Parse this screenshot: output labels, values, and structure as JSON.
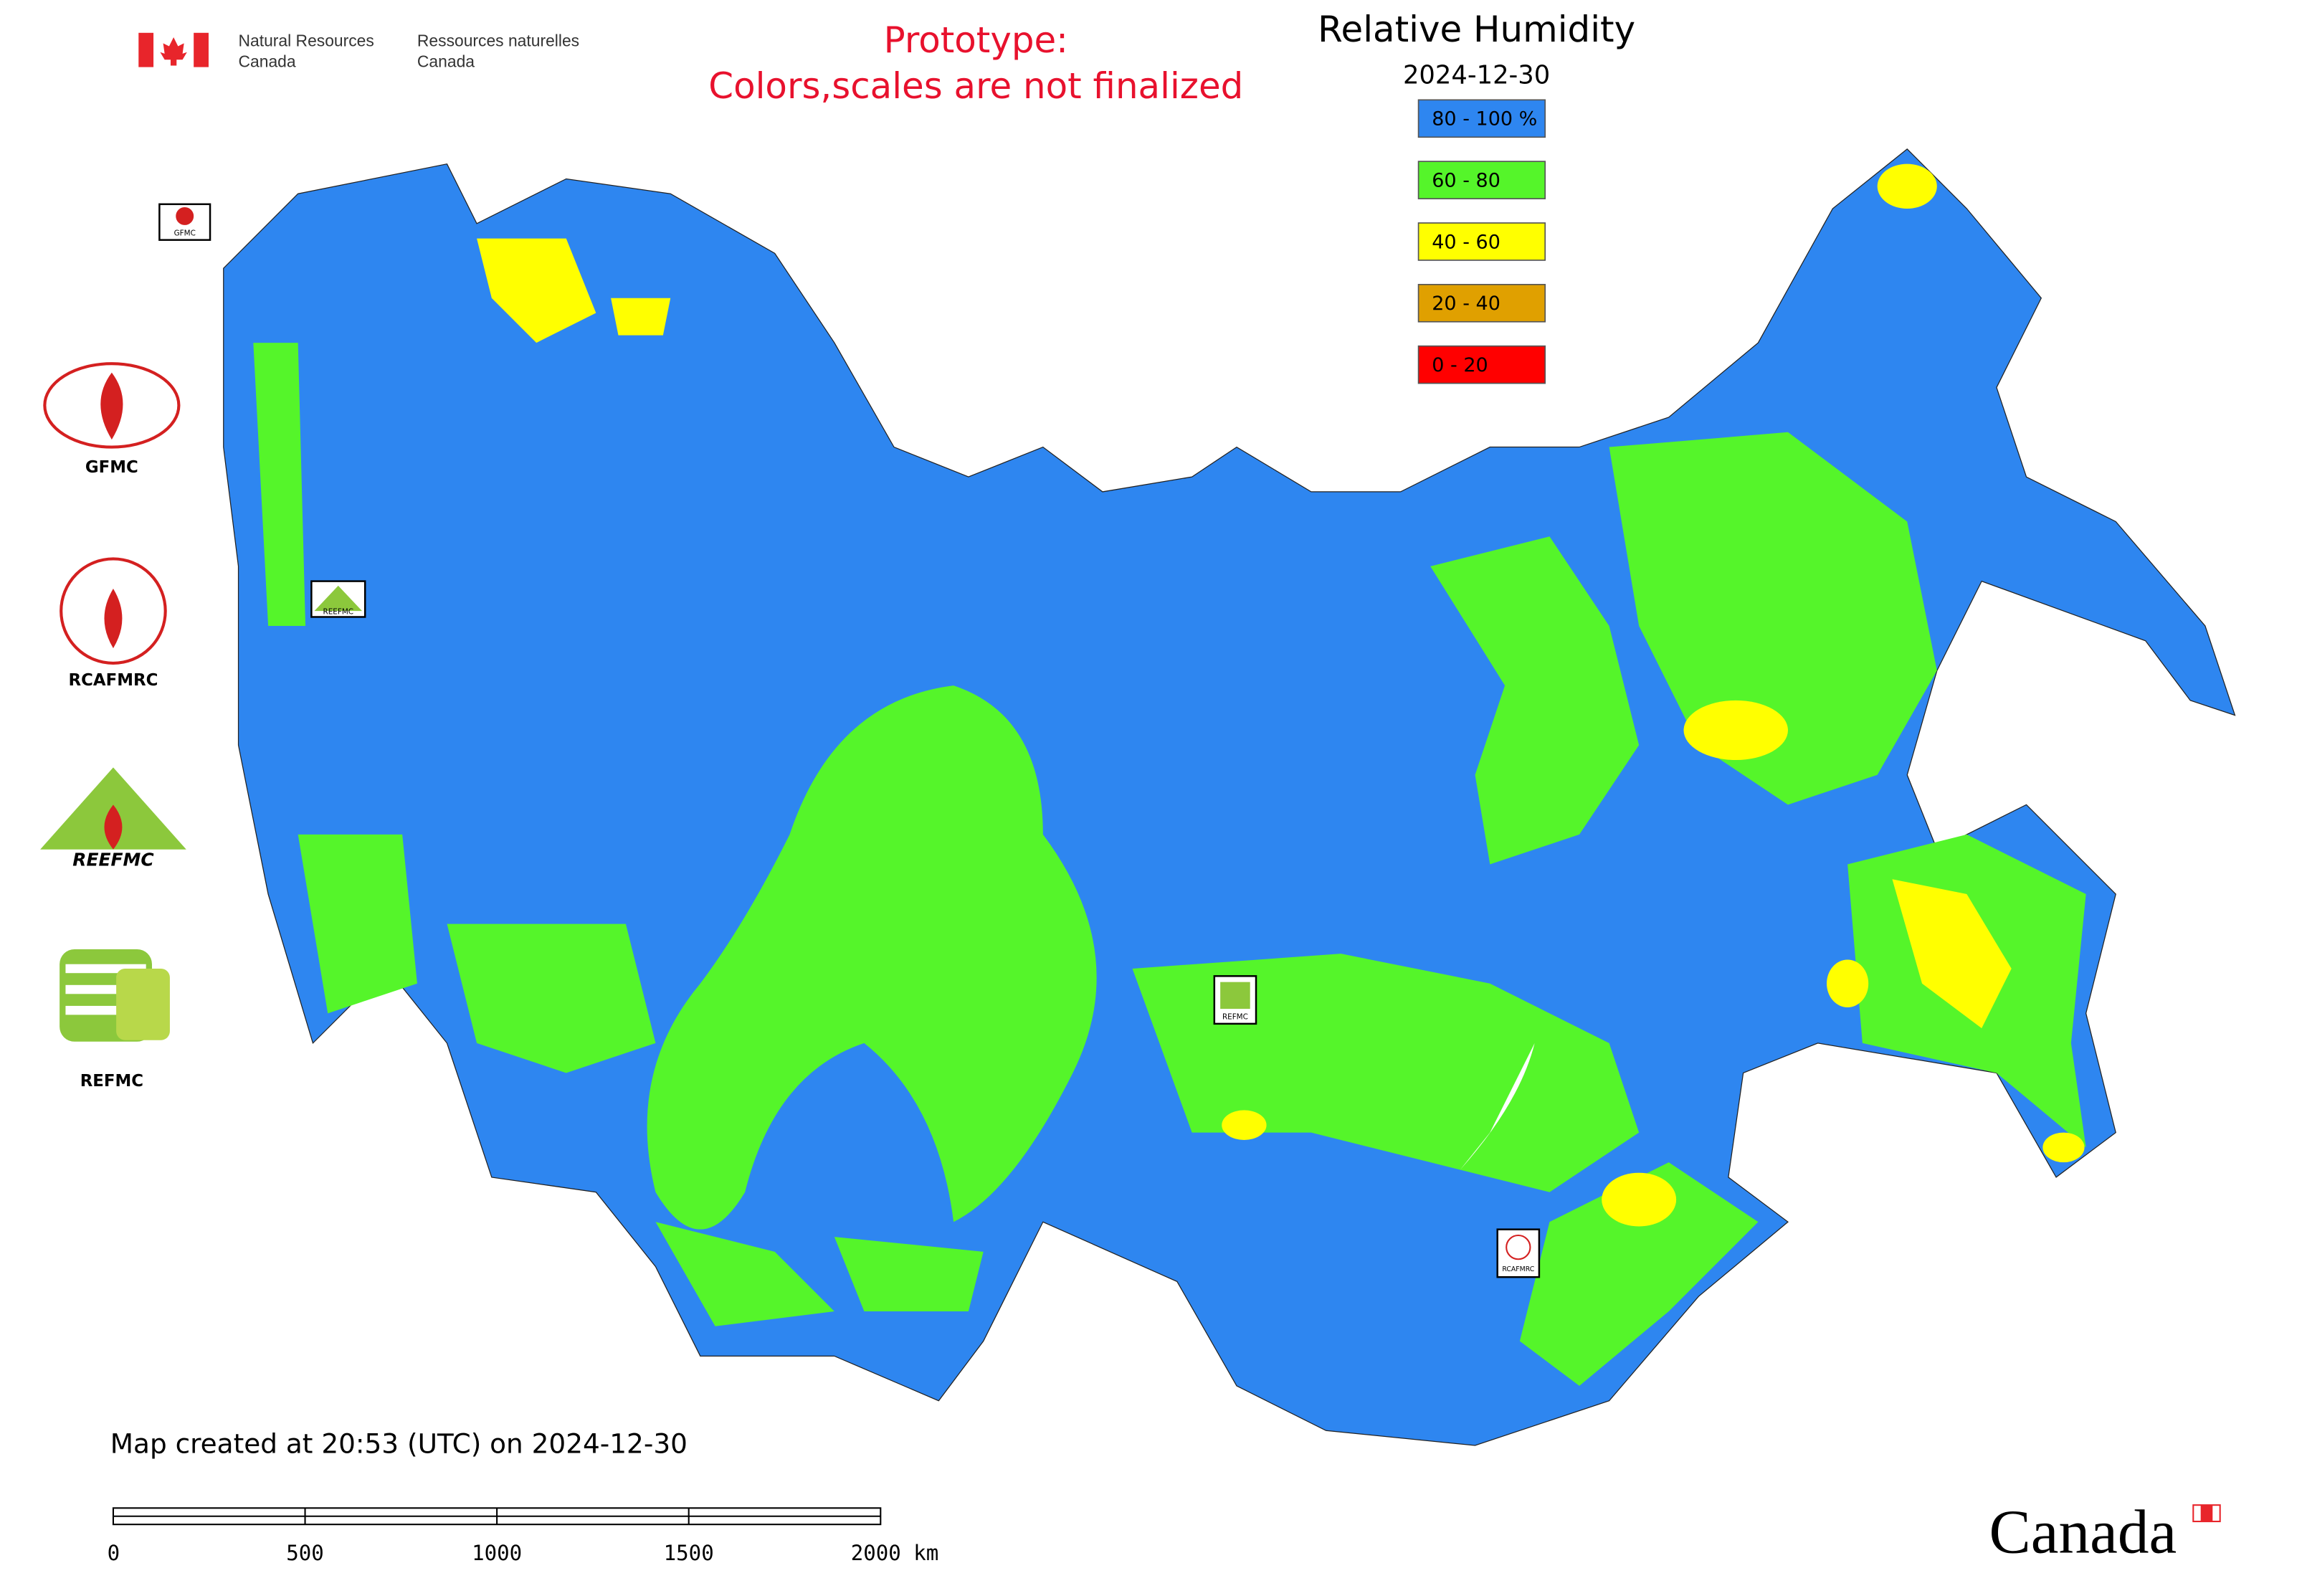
{
  "header": {
    "agency_en": [
      "Natural Resources",
      "Canada"
    ],
    "agency_fr": [
      "Ressources naturelles",
      "Canada"
    ],
    "notice": [
      "Prototype:",
      "Colors,scales are not finalized"
    ],
    "title": "Relative Humidity",
    "date": "2024-12-30"
  },
  "legend": [
    {
      "label": "80 - 100 %",
      "color": "#2e86f0"
    },
    {
      "label": "60 - 80",
      "color": "#55f52a"
    },
    {
      "label": "40 - 60",
      "color": "#ffff00"
    },
    {
      "label": "20 - 40",
      "color": "#e0a000"
    },
    {
      "label": "0 - 20",
      "color": "#ff0000"
    }
  ],
  "logos": [
    "GFMC",
    "RCAFMRC",
    "REEFMC",
    "REFMC"
  ],
  "map_markers": [
    "GFMC",
    "REEFMC",
    "REFMC",
    "RCAFMRC"
  ],
  "footer": "Map created at 20:53 (UTC) on 2024-12-30",
  "scale_bar": [
    "0",
    "500",
    "1000",
    "1500",
    "2000 km"
  ],
  "wordmark": "Canada"
}
